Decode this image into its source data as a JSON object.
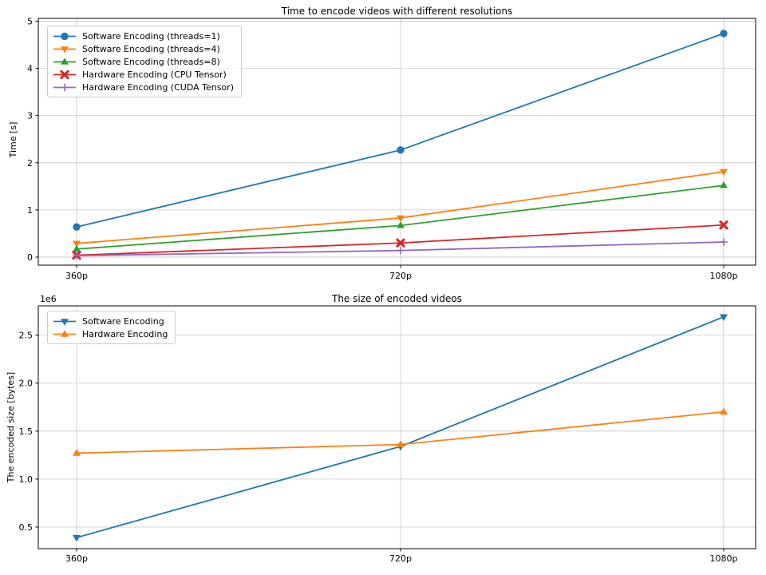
{
  "styles": {
    "background": "#ffffff",
    "grid_color": "#c8c8c8",
    "spine_color": "#000000",
    "text_color": "#000000"
  },
  "chart_data": [
    {
      "type": "line",
      "title": "Time to encode videos with different resolutions",
      "xlabel": "",
      "ylabel": "Time [s]",
      "categories": [
        "360p",
        "720p",
        "1080p"
      ],
      "ylim": [
        -0.17,
        5.06
      ],
      "yticks": [
        0,
        1,
        2,
        3,
        4,
        5
      ],
      "ytick_labels": [
        "0",
        "1",
        "2",
        "3",
        "4",
        "5"
      ],
      "grid": true,
      "legend_position": "upper left",
      "series": [
        {
          "name": "Software Encoding (threads=1)",
          "color": "#1f77b4",
          "marker": "circle",
          "values": [
            0.64,
            2.27,
            4.74
          ]
        },
        {
          "name": "Software Encoding (threads=4)",
          "color": "#ff7f0e",
          "marker": "triangle-down",
          "values": [
            0.29,
            0.83,
            1.81
          ]
        },
        {
          "name": "Software Encoding (threads=8)",
          "color": "#2ca02c",
          "marker": "triangle-up",
          "values": [
            0.17,
            0.67,
            1.52
          ]
        },
        {
          "name": "Hardware Encoding (CPU Tensor)",
          "color": "#d62728",
          "marker": "x-filled",
          "values": [
            0.04,
            0.3,
            0.68
          ]
        },
        {
          "name": "Hardware Encoding (CUDA Tensor)",
          "color": "#9467bd",
          "marker": "plus",
          "values": [
            0.03,
            0.14,
            0.32
          ]
        }
      ]
    },
    {
      "type": "line",
      "title": "The size of encoded videos",
      "xlabel": "",
      "ylabel": "The encoded size [bytes]",
      "offset_text": "1e6",
      "categories": [
        "360p",
        "720p",
        "1080p"
      ],
      "ylim": [
        275000,
        2805000
      ],
      "yticks": [
        500000,
        1000000,
        1500000,
        2000000,
        2500000
      ],
      "ytick_labels": [
        "0.5",
        "1.0",
        "1.5",
        "2.0",
        "2.5"
      ],
      "grid": true,
      "legend_position": "upper left",
      "series": [
        {
          "name": "Software Encoding",
          "color": "#1f77b4",
          "marker": "triangle-down",
          "values": [
            390000,
            1340000,
            2690000
          ]
        },
        {
          "name": "Hardware Encoding",
          "color": "#ff7f0e",
          "marker": "triangle-up",
          "values": [
            1270000,
            1360000,
            1700000
          ]
        }
      ]
    }
  ]
}
